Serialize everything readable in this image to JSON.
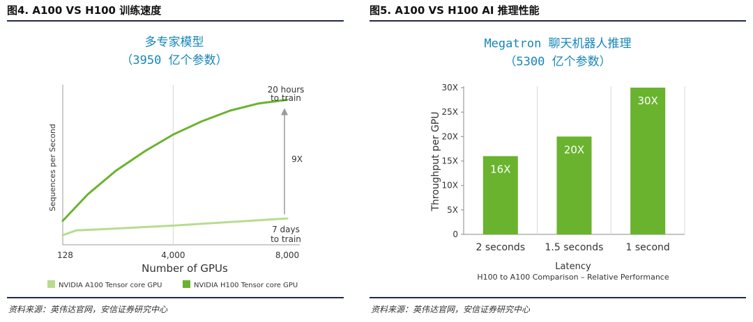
{
  "colors": {
    "accent_blue": "#1686b8",
    "green_dark": "#6ab32e",
    "green_light": "#b7dc8e",
    "rule": "#1f2a44"
  },
  "left": {
    "figure_title": "图4. A100 VS H100 训练速度",
    "chart_title_line1": "多专家模型",
    "chart_title_line2": "（3950 亿个参数）",
    "source": "资料来源：英伟达官网，安信证券研究中心"
  },
  "right": {
    "figure_title": "图5. A100 VS H100 AI 推理性能",
    "chart_title_line1": "Megatron 聊天机器人推理",
    "chart_title_line2": "（5300 亿个参数）",
    "source": "资料来源：英伟达官网，安信证券研究中心"
  },
  "chart_data": [
    {
      "type": "line",
      "xlabel": "Number of GPUs",
      "ylabel": "Sequences per Second",
      "x_ticks": [
        "128",
        "4,000",
        "8,000"
      ],
      "xlim": [
        128,
        8000
      ],
      "grid": "single vertical line at 4,000",
      "legend_position": "bottom",
      "series": [
        {
          "name": "NVIDIA A100 Tensor core GPU",
          "color": "#b7dc8e",
          "x": [
            128,
            600,
            1500,
            4000,
            8000
          ],
          "y": [
            0.08,
            0.12,
            0.13,
            0.16,
            0.22
          ]
        },
        {
          "name": "NVIDIA H100 Tensor core GPU",
          "color": "#6ab32e",
          "x": [
            128,
            1000,
            2000,
            3000,
            4000,
            5000,
            6000,
            7000,
            8000
          ],
          "y": [
            0.2,
            0.42,
            0.62,
            0.78,
            0.92,
            1.03,
            1.12,
            1.18,
            1.21
          ]
        }
      ],
      "annotations": {
        "h100_end_line1": "20 hours",
        "h100_end_line2": "to train",
        "a100_end_line1": "7 days",
        "a100_end_line2": "to train",
        "speedup": "9X"
      }
    },
    {
      "type": "bar",
      "categories": [
        "2 seconds",
        "1.5 seconds",
        "1 second"
      ],
      "values": [
        16,
        20,
        30
      ],
      "value_labels": [
        "16X",
        "20X",
        "30X"
      ],
      "bar_color": "#6ab32e",
      "ylabel": "Throughput per GPU",
      "xlabel": "Latency",
      "subtitle": "H100 to A100 Comparison – Relative Performance",
      "y_ticks": [
        "0",
        "5X",
        "10X",
        "15X",
        "20X",
        "25X",
        "30X"
      ],
      "ylim": [
        0,
        30
      ],
      "grid": "vertical separators between categories"
    }
  ]
}
